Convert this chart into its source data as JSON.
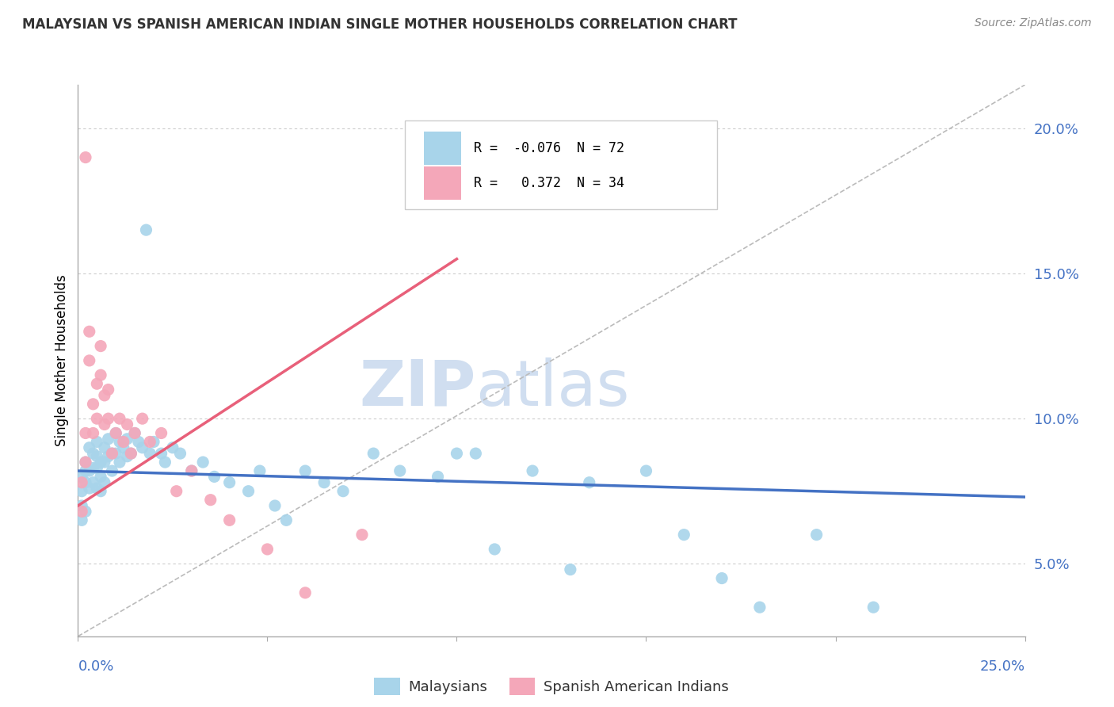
{
  "title": "MALAYSIAN VS SPANISH AMERICAN INDIAN SINGLE MOTHER HOUSEHOLDS CORRELATION CHART",
  "source": "Source: ZipAtlas.com",
  "ylabel": "Single Mother Households",
  "blue_R": -0.076,
  "blue_N": 72,
  "pink_R": 0.372,
  "pink_N": 34,
  "blue_color": "#A8D4EA",
  "pink_color": "#F4A7B9",
  "blue_line_color": "#4472C4",
  "pink_line_color": "#E8607A",
  "gray_dash_color": "#BBBBBB",
  "legend_blue_label": "Malaysians",
  "legend_pink_label": "Spanish American Indians",
  "xlim": [
    0,
    0.25
  ],
  "ylim": [
    0.025,
    0.215
  ],
  "yticks": [
    0.05,
    0.1,
    0.15,
    0.2
  ],
  "ytick_labels": [
    "5.0%",
    "10.0%",
    "15.0%",
    "20.0%"
  ],
  "blue_line": {
    "x0": 0.0,
    "x1": 0.25,
    "y0": 0.082,
    "y1": 0.073
  },
  "pink_line": {
    "x0": 0.0,
    "x1": 0.1,
    "y0": 0.07,
    "y1": 0.155
  },
  "gray_line": {
    "x0": 0.0,
    "x1": 0.25,
    "y0": 0.025,
    "y1": 0.215
  },
  "blue_scatter_x": [
    0.001,
    0.001,
    0.001,
    0.001,
    0.002,
    0.002,
    0.002,
    0.002,
    0.003,
    0.003,
    0.003,
    0.004,
    0.004,
    0.004,
    0.005,
    0.005,
    0.005,
    0.005,
    0.006,
    0.006,
    0.006,
    0.007,
    0.007,
    0.007,
    0.008,
    0.008,
    0.009,
    0.009,
    0.01,
    0.01,
    0.011,
    0.011,
    0.012,
    0.013,
    0.013,
    0.014,
    0.015,
    0.016,
    0.017,
    0.018,
    0.019,
    0.02,
    0.022,
    0.023,
    0.025,
    0.027,
    0.03,
    0.033,
    0.036,
    0.04,
    0.045,
    0.048,
    0.052,
    0.055,
    0.06,
    0.065,
    0.07,
    0.078,
    0.085,
    0.095,
    0.105,
    0.12,
    0.135,
    0.15,
    0.16,
    0.18,
    0.195,
    0.21,
    0.1,
    0.11,
    0.13,
    0.17
  ],
  "blue_scatter_y": [
    0.08,
    0.075,
    0.07,
    0.065,
    0.085,
    0.082,
    0.078,
    0.068,
    0.09,
    0.082,
    0.076,
    0.088,
    0.083,
    0.078,
    0.092,
    0.087,
    0.083,
    0.076,
    0.085,
    0.08,
    0.075,
    0.09,
    0.085,
    0.078,
    0.093,
    0.087,
    0.088,
    0.082,
    0.095,
    0.088,
    0.092,
    0.085,
    0.09,
    0.093,
    0.087,
    0.088,
    0.095,
    0.092,
    0.09,
    0.165,
    0.088,
    0.092,
    0.088,
    0.085,
    0.09,
    0.088,
    0.082,
    0.085,
    0.08,
    0.078,
    0.075,
    0.082,
    0.07,
    0.065,
    0.082,
    0.078,
    0.075,
    0.088,
    0.082,
    0.08,
    0.088,
    0.082,
    0.078,
    0.082,
    0.06,
    0.035,
    0.06,
    0.035,
    0.088,
    0.055,
    0.048,
    0.045
  ],
  "pink_scatter_x": [
    0.001,
    0.001,
    0.002,
    0.002,
    0.003,
    0.003,
    0.004,
    0.004,
    0.005,
    0.005,
    0.006,
    0.006,
    0.007,
    0.007,
    0.008,
    0.008,
    0.009,
    0.01,
    0.011,
    0.012,
    0.013,
    0.014,
    0.015,
    0.017,
    0.019,
    0.022,
    0.026,
    0.03,
    0.035,
    0.04,
    0.05,
    0.06,
    0.075,
    0.002
  ],
  "pink_scatter_y": [
    0.078,
    0.068,
    0.095,
    0.085,
    0.13,
    0.12,
    0.105,
    0.095,
    0.112,
    0.1,
    0.125,
    0.115,
    0.108,
    0.098,
    0.11,
    0.1,
    0.088,
    0.095,
    0.1,
    0.092,
    0.098,
    0.088,
    0.095,
    0.1,
    0.092,
    0.095,
    0.075,
    0.082,
    0.072,
    0.065,
    0.055,
    0.04,
    0.06,
    0.19
  ]
}
